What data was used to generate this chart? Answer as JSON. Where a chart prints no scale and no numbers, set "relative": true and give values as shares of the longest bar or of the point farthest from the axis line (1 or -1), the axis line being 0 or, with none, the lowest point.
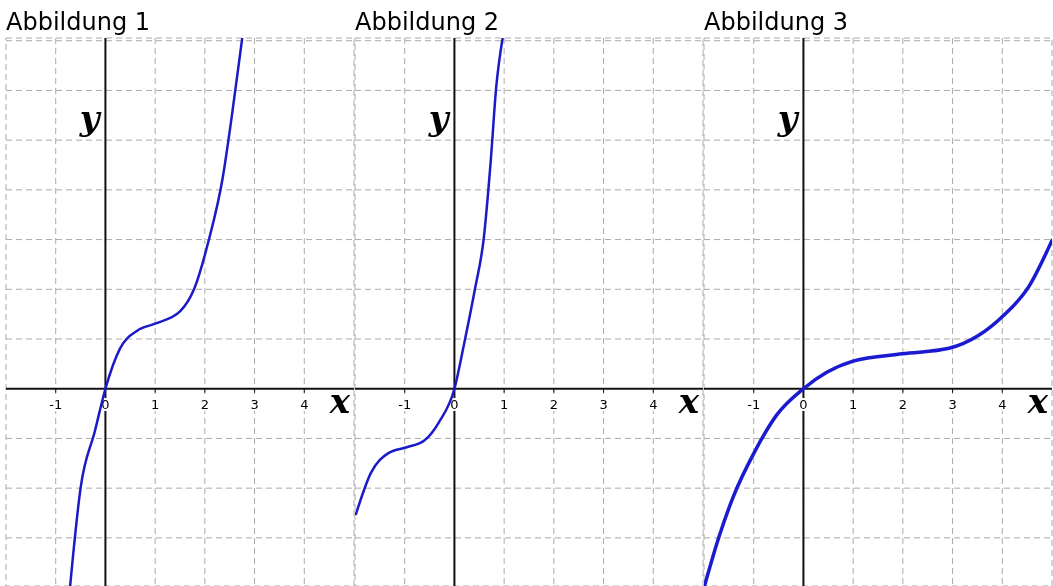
{
  "chart_data": [
    {
      "type": "line",
      "title": "Abbildung 1",
      "xlabel": "x",
      "ylabel": "y",
      "relative": true,
      "grid": true,
      "tick_labels": "x",
      "xlim": [
        -2,
        5
      ],
      "xticks": [
        -1,
        0,
        1,
        2,
        3,
        4
      ],
      "color": "#1a1ac8",
      "x": [
        -0.71,
        -0.5,
        -0.21,
        0,
        0.29,
        0.64,
        1,
        1.5,
        1.79,
        2.07,
        2.36,
        2.54,
        2.75
      ],
      "values": [
        -0.564,
        -0.284,
        -0.12,
        0,
        0.114,
        0.166,
        0.186,
        0.221,
        0.287,
        0.42,
        0.604,
        0.777,
        1
      ]
    },
    {
      "type": "line",
      "title": "Abbildung 2",
      "xlabel": "x",
      "ylabel": "y",
      "relative": true,
      "grid": true,
      "tick_labels": "x",
      "xlim": [
        -2,
        5
      ],
      "xticks": [
        -1,
        0,
        1,
        2,
        3,
        4
      ],
      "color": "#1a1ac8",
      "x": [
        -1.98,
        -1.68,
        -1.32,
        -0.96,
        -0.6,
        -0.31,
        0,
        0.19,
        0.41,
        0.59,
        0.73,
        0.84,
        0.97
      ],
      "values": [
        -0.357,
        -0.24,
        -0.183,
        -0.167,
        -0.147,
        -0.095,
        0,
        0.125,
        0.282,
        0.429,
        0.649,
        0.859,
        1
      ]
    },
    {
      "type": "line",
      "title": "Abbildung 3",
      "xlabel": "x",
      "ylabel": "y",
      "relative": true,
      "grid": true,
      "tick_labels": "x",
      "xlim": [
        -2,
        5
      ],
      "xticks": [
        -1,
        0,
        1,
        2,
        3,
        4
      ],
      "color": "#1a1ad0",
      "x": [
        -1.99,
        -1.7,
        -1.41,
        -0.98,
        -0.54,
        0,
        0.47,
        1,
        1.99,
        2.93,
        3.51,
        4.02,
        4.53,
        5
      ],
      "values": [
        -1,
        -0.752,
        -0.547,
        -0.319,
        -0.134,
        0,
        0.083,
        0.14,
        0.177,
        0.205,
        0.268,
        0.37,
        0.516,
        0.752
      ]
    }
  ]
}
